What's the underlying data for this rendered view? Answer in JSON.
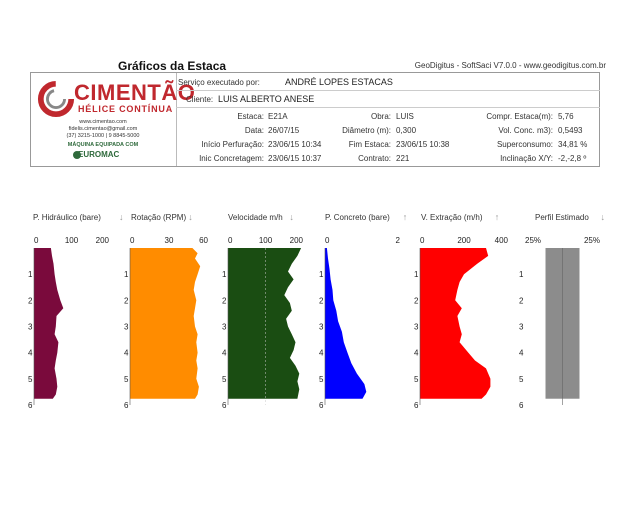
{
  "page": {
    "title": "Gráficos da Estaca",
    "software": "GeoDigitus - SoftSaci V7.0.0 - www.geodigitus.com.br"
  },
  "company": {
    "name": "CIMENTÃO",
    "tagline": "HÉLICE CONTÍNUA",
    "website": "www.cimentao.com",
    "email": "fidelis.cimentao@gmail.com",
    "phones": "(37) 3215-1000 | 9 8845-5000",
    "partner_caption": "MÁQUINA EQUIPADA COM",
    "partner": "EUROMAC"
  },
  "header": {
    "service_label": "Serviço executado por:",
    "service_value": "ANDRÉ LOPES ESTACAS",
    "client_label": "Cliente:",
    "client_value": "LUIS ALBERTO ANESE",
    "fields_left": [
      {
        "label": "Estaca:",
        "value": "E21A"
      },
      {
        "label": "Data:",
        "value": "26/07/15"
      },
      {
        "label": "Início Perfuração:",
        "value": "23/06/15 10:34"
      },
      {
        "label": "Inic Concretagem:",
        "value": "23/06/15 10:37"
      }
    ],
    "fields_mid": [
      {
        "label": "Obra:",
        "value": "LUIS"
      },
      {
        "label": "Diâmetro (m):",
        "value": "0,300"
      },
      {
        "label": "Fim Estaca:",
        "value": "23/06/15 10:38"
      },
      {
        "label": "Contrato:",
        "value": "221"
      }
    ],
    "fields_right": [
      {
        "label": "Compr. Estaca(m):",
        "value": "5,76"
      },
      {
        "label": "Vol. Conc. m3):",
        "value": "0,5493"
      },
      {
        "label": "Superconsumo:",
        "value": "34,81 %"
      },
      {
        "label": "Inclinação X/Y:",
        "value": "-2,-2,8 º"
      }
    ]
  },
  "colors": {
    "hydraulic": "#7a0a3c",
    "rotation": "#ff8c00",
    "speed": "#1a4d12",
    "concrete": "#0000ff",
    "extraction": "#ff0000",
    "profile": "#8c8c8c"
  },
  "chart_data": [
    {
      "type": "area",
      "title": "P. Hidráulico (bare)",
      "xlim": [
        0,
        200
      ],
      "xticks": [
        "0",
        "100",
        "200"
      ],
      "depth_ticks": [
        "1",
        "2",
        "3",
        "4",
        "5",
        "6"
      ],
      "ylim": [
        0,
        6
      ],
      "depth": [
        0,
        0.3,
        0.6,
        1.0,
        1.3,
        1.6,
        2.0,
        2.3,
        2.6,
        3.0,
        3.3,
        3.6,
        4.0,
        4.3,
        4.6,
        5.0,
        5.3,
        5.6,
        5.76
      ],
      "values": [
        45,
        48,
        52,
        55,
        58,
        62,
        70,
        78,
        60,
        58,
        55,
        65,
        62,
        58,
        55,
        60,
        62,
        58,
        50
      ]
    },
    {
      "type": "area",
      "title": "Rotação (RPM)",
      "xlim": [
        0,
        60
      ],
      "xticks": [
        "0",
        "30",
        "60"
      ],
      "depth_ticks": [
        "1",
        "2",
        "3",
        "4",
        "5",
        "6"
      ],
      "ylim": [
        0,
        6
      ],
      "depth": [
        0,
        0.2,
        0.4,
        0.7,
        1.0,
        1.3,
        1.6,
        2.0,
        2.3,
        2.6,
        3.0,
        3.3,
        3.6,
        4.0,
        4.3,
        4.6,
        5.0,
        5.3,
        5.6,
        5.76
      ],
      "values": [
        48,
        52,
        50,
        54,
        52,
        50,
        49,
        51,
        50,
        49,
        50,
        52,
        51,
        52,
        51,
        52,
        51,
        53,
        52,
        50
      ]
    },
    {
      "type": "area",
      "title": "Velocidade m/h",
      "xlim": [
        0,
        200
      ],
      "xticks": [
        "0",
        "100",
        "200"
      ],
      "depth_ticks": [
        "1",
        "2",
        "3",
        "4",
        "5",
        "6"
      ],
      "ylim": [
        0,
        6
      ],
      "depth": [
        0,
        0.3,
        0.6,
        0.9,
        1.2,
        1.5,
        1.8,
        2.1,
        2.4,
        2.7,
        3.0,
        3.3,
        3.6,
        3.9,
        4.2,
        4.5,
        4.8,
        5.1,
        5.4,
        5.76
      ],
      "values": [
        195,
        185,
        170,
        160,
        175,
        160,
        150,
        165,
        170,
        155,
        160,
        170,
        180,
        175,
        165,
        180,
        190,
        185,
        190,
        185
      ]
    },
    {
      "type": "area",
      "title": "P. Concreto (bare)",
      "xlim": [
        0,
        2
      ],
      "xticks": [
        "0",
        "2"
      ],
      "depth_ticks": [
        "1",
        "2",
        "3",
        "4",
        "5",
        "6"
      ],
      "ylim": [
        0,
        6
      ],
      "depth": [
        0,
        0.4,
        0.8,
        1.2,
        1.6,
        2.0,
        2.4,
        2.8,
        3.2,
        3.6,
        4.0,
        4.4,
        4.8,
        5.2,
        5.5,
        5.76
      ],
      "values": [
        0.05,
        0.08,
        0.12,
        0.15,
        0.2,
        0.22,
        0.3,
        0.35,
        0.45,
        0.5,
        0.6,
        0.7,
        0.85,
        1.05,
        1.1,
        1.0
      ]
    },
    {
      "type": "area",
      "title": "V. Extração (m/h)",
      "xlim": [
        0,
        400
      ],
      "xticks": [
        "0",
        "200",
        "400"
      ],
      "depth_ticks": [
        "1",
        "2",
        "3",
        "4",
        "5",
        "6"
      ],
      "ylim": [
        0,
        6
      ],
      "depth": [
        0,
        0.3,
        0.6,
        1.0,
        1.3,
        1.6,
        2.0,
        2.3,
        2.6,
        3.0,
        3.3,
        3.6,
        4.0,
        4.3,
        4.6,
        5.0,
        5.3,
        5.6,
        5.76
      ],
      "values": [
        300,
        310,
        260,
        200,
        180,
        170,
        160,
        190,
        170,
        180,
        190,
        180,
        220,
        250,
        300,
        320,
        320,
        300,
        280
      ]
    },
    {
      "type": "area",
      "title": "Perfil Estimado",
      "xlim": [
        -25,
        25
      ],
      "xticks": [
        "25%",
        "25%"
      ],
      "depth_ticks": [
        "1",
        "2",
        "3",
        "4",
        "5",
        "6"
      ],
      "ylim": [
        0,
        6
      ],
      "depth": [
        0,
        5.76
      ],
      "values": [
        0,
        0
      ]
    }
  ]
}
